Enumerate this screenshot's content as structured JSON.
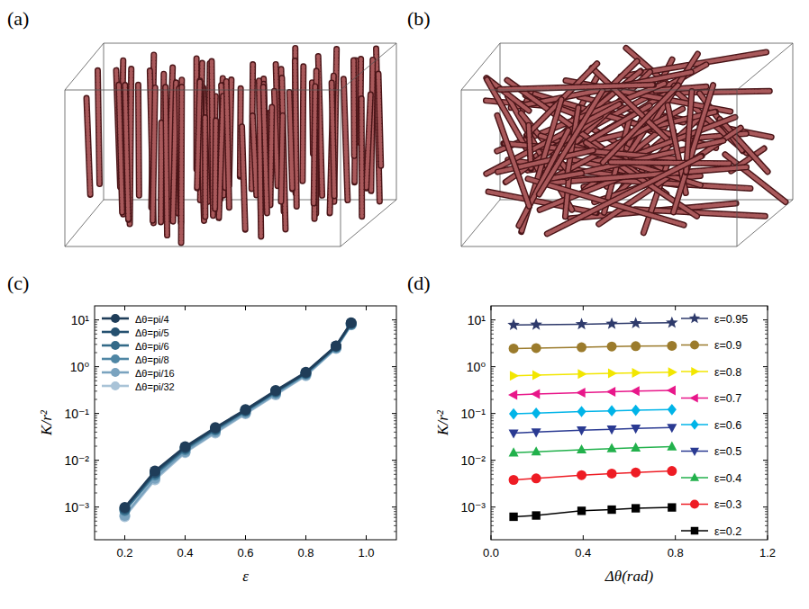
{
  "panel_labels": [
    "(a)",
    "(b)",
    "(c)",
    "(d)"
  ],
  "chart_data": [
    {
      "type": "line",
      "x_label": "ε",
      "y_label": "K/r²",
      "log": "y",
      "grid": false,
      "legend": "upper left",
      "marker": "circle",
      "x": [
        0.2,
        0.3,
        0.4,
        0.5,
        0.6,
        0.7,
        0.8,
        0.9,
        0.95
      ],
      "xlim": [
        0.1,
        1.1
      ],
      "xticks": [
        0.2,
        0.4,
        0.6,
        0.8,
        {
          "value": 1,
          "label": "1.0"
        }
      ],
      "ylim": [
        0.0002,
        20
      ],
      "yticks": [
        {
          "value": 0.001,
          "label": "10⁻³"
        },
        {
          "value": 0.01,
          "label": "10⁻²"
        },
        {
          "value": 0.1,
          "label": "10⁻¹"
        },
        {
          "value": 1,
          "label": "10⁰"
        },
        {
          "value": 10,
          "label": "10¹"
        }
      ],
      "series": [
        {
          "name": "Δθ=pi/4",
          "color": "#1f3d59",
          "values": [
            0.00098,
            0.0059,
            0.0195,
            0.05,
            0.121,
            0.31,
            0.76,
            2.8,
            8.7
          ]
        },
        {
          "name": "Δθ=pi/5",
          "color": "#255170",
          "values": [
            0.00094,
            0.0055,
            0.0185,
            0.048,
            0.117,
            0.3,
            0.74,
            2.75,
            8.5
          ]
        },
        {
          "name": "Δθ=pi/6",
          "color": "#336a88",
          "values": [
            0.00088,
            0.0052,
            0.0178,
            0.046,
            0.114,
            0.29,
            0.72,
            2.7,
            8.3
          ]
        },
        {
          "name": "Δθ=pi/8",
          "color": "#4f86a4",
          "values": [
            0.00083,
            0.0048,
            0.0168,
            0.044,
            0.11,
            0.28,
            0.7,
            2.6,
            8.1
          ]
        },
        {
          "name": "Δθ=pi/16",
          "color": "#7aa3bf",
          "values": [
            0.00066,
            0.0041,
            0.0152,
            0.04,
            0.102,
            0.26,
            0.66,
            2.5,
            7.9
          ]
        },
        {
          "name": "Δθ=pi/32",
          "color": "#a9c3d7",
          "values": [
            0.00062,
            0.0038,
            0.0145,
            0.038,
            0.098,
            0.25,
            0.64,
            2.45,
            7.8
          ]
        }
      ]
    },
    {
      "type": "line",
      "x_label": "Δθ(rad)",
      "y_label": "K/r²",
      "log": "y",
      "grid": false,
      "legend": "right",
      "x": [
        0.098,
        0.196,
        0.393,
        0.524,
        0.628,
        0.785
      ],
      "xlim": [
        0,
        1.2
      ],
      "xticks": [
        {
          "value": 0,
          "label": "0.0"
        },
        0.4,
        0.8,
        1.2
      ],
      "ylim": [
        0.0002,
        20
      ],
      "yticks": [
        {
          "value": 0.001,
          "label": "10⁻³"
        },
        {
          "value": 0.01,
          "label": "10⁻²"
        },
        {
          "value": 0.1,
          "label": "10⁻¹"
        },
        {
          "value": 1,
          "label": "10⁰"
        },
        {
          "value": 10,
          "label": "10¹"
        }
      ],
      "series": [
        {
          "name": "ε=0.95",
          "color": "#2e3a6b",
          "marker": "star",
          "values": [
            7.8,
            7.9,
            8.1,
            8.3,
            8.5,
            8.7
          ]
        },
        {
          "name": "ε=0.9",
          "color": "#9b7b2c",
          "marker": "circle",
          "values": [
            2.45,
            2.5,
            2.6,
            2.7,
            2.75,
            2.8
          ]
        },
        {
          "name": "ε=0.8",
          "color": "#f2e600",
          "marker": "triangle-right",
          "values": [
            0.64,
            0.66,
            0.7,
            0.72,
            0.74,
            0.76
          ]
        },
        {
          "name": "ε=0.7",
          "color": "#e8178a",
          "marker": "triangle-left",
          "values": [
            0.25,
            0.26,
            0.28,
            0.29,
            0.3,
            0.31
          ]
        },
        {
          "name": "ε=0.6",
          "color": "#00b4e8",
          "marker": "diamond",
          "values": [
            0.098,
            0.102,
            0.11,
            0.114,
            0.117,
            0.121
          ]
        },
        {
          "name": "ε=0.5",
          "color": "#2a3a92",
          "marker": "triangle-down",
          "values": [
            0.038,
            0.04,
            0.044,
            0.046,
            0.048,
            0.05
          ]
        },
        {
          "name": "ε=0.4",
          "color": "#22b14c",
          "marker": "triangle-up",
          "values": [
            0.0145,
            0.0152,
            0.0168,
            0.0178,
            0.0185,
            0.0195
          ]
        },
        {
          "name": "ε=0.3",
          "color": "#ee1c24",
          "marker": "circle",
          "values": [
            0.0038,
            0.0041,
            0.0048,
            0.0052,
            0.0055,
            0.0059
          ]
        },
        {
          "name": "ε=0.2",
          "color": "#000000",
          "marker": "square",
          "values": [
            0.00062,
            0.00066,
            0.00083,
            0.00088,
            0.00094,
            0.00098
          ]
        }
      ]
    }
  ]
}
